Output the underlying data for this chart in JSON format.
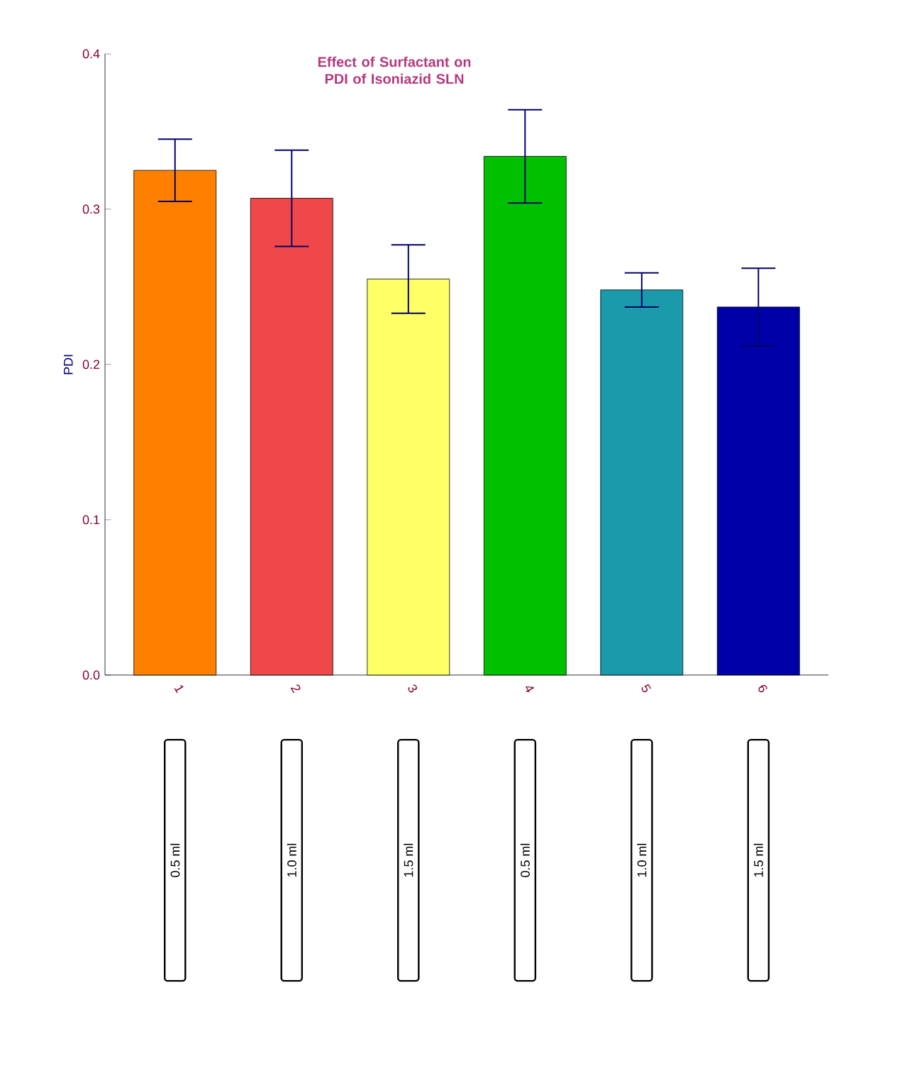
{
  "chart_data": {
    "type": "bar",
    "title": "Effect of Surfactant on PDI of Isoniazid SLN",
    "ylabel": "PDI",
    "categories": [
      "1",
      "2",
      "3",
      "4",
      "5",
      "6"
    ],
    "values": [
      0.325,
      0.307,
      0.255,
      0.334,
      0.248,
      0.237
    ],
    "errors": [
      0.02,
      0.031,
      0.022,
      0.03,
      0.011,
      0.025
    ],
    "colors": [
      "#ff8000",
      "#f04848",
      "#ffff66",
      "#00c000",
      "#1a9aaa",
      "#0000a8"
    ],
    "ylim": [
      0,
      0.4
    ],
    "yticks": [
      {
        "value": 0,
        "label": "0.0"
      },
      0.1,
      0.2,
      0.3,
      0.4
    ],
    "annotations": [
      "0.5 ml",
      "1.0 ml",
      "1.5 ml",
      "0.5 ml",
      "1.0 ml",
      "1.5 ml"
    ]
  }
}
